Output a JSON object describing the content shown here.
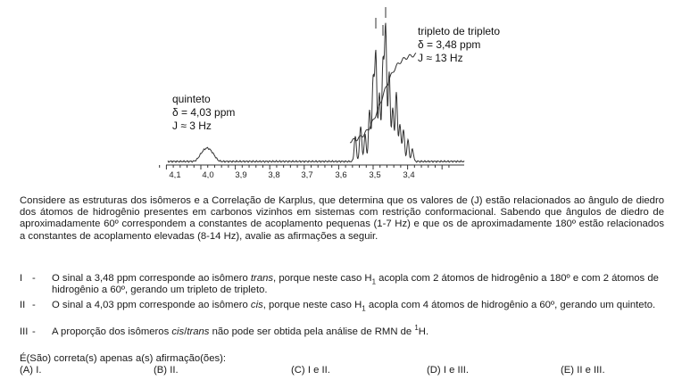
{
  "spectrum": {
    "axis_ticks": [
      "4,1",
      "4,0",
      "3,9",
      "3,8",
      "3,7",
      "3,6",
      "3,5",
      "3,4"
    ],
    "quintet": {
      "line1": "quinteto",
      "line2": "δ = 4,03 ppm",
      "line3": "J ≈ 3 Hz"
    },
    "triplet": {
      "line1": "tripleto de tripleto",
      "line2": "δ = 3,48 ppm",
      "line3": "J ≈  13 Hz"
    }
  },
  "paragraph": "Considere as estruturas dos isômeros e a Correlação de Karplus, que determina que os valores de (J) estão relacionados ao ângulo de diedro dos átomos de hidrogênio presentes em carbonos vizinhos em sistemas com restrição conformacional. Sabendo que ângulos de diedro de aproximadamente 60º correspondem a constantes de acoplamento pequenas (1-7 Hz) e que os de aproximadamente 180º estão relacionados a constantes de acoplamento elevadas (8-14 Hz), avalie as afirmações a seguir.",
  "statements": [
    {
      "num": "I",
      "dash": "-",
      "text": "O sinal a 3,48 ppm corresponde ao isômero trans, porque neste caso H1 acopla com 2 átomos de hidrogênio a 180º e com 2 átomos de hidrogênio a 60º, gerando um tripleto de tripleto."
    },
    {
      "num": "II",
      "dash": "-",
      "text": "O sinal a 4,03 ppm corresponde ao isômero cis, porque neste caso H1 acopla com 4 átomos de hidrogênio a 60º, gerando um quinteto."
    },
    {
      "num": "III",
      "dash": "-",
      "text": "A proporção dos isômeros cis/trans não pode ser obtida pela análise de RMN de 1H."
    }
  ],
  "question": "É(São) correta(s) apenas a(s) afirmação(ões):",
  "options": [
    "(A) I.",
    "(B) II.",
    "(C) I e II.",
    "(D) I e III.",
    "(E) II e III."
  ]
}
